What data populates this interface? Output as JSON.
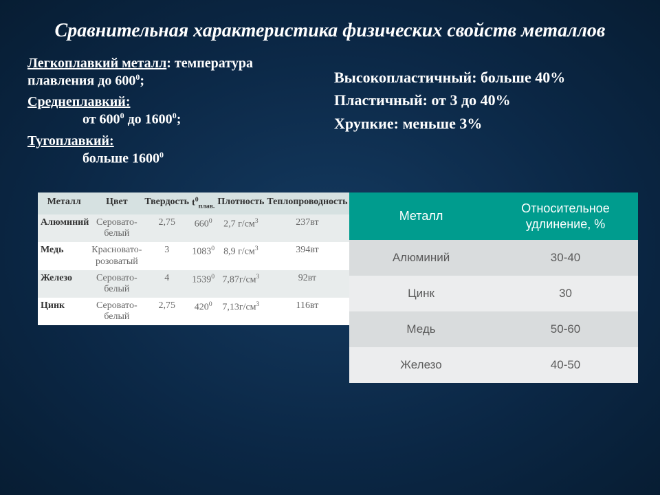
{
  "title": "Сравнительная характеристика физических свойств металлов",
  "left": {
    "l1a": "Легкоплавкий металл",
    "l1b": ": температура плавления до 600",
    "l1c": ";",
    "l2a": "Среднеплавкий:",
    "l2b": "от 600",
    "l2c": " до 1600",
    "l2d": ";",
    "l3a": "Тугоплавкий:",
    "l3b": "больше  1600"
  },
  "right": {
    "r1": "Высокопластичный: больше 40%",
    "r2": "Пластичный: от 3 до 40%",
    "r3": "Хрупкие: меньше 3%"
  },
  "table1": {
    "headers": [
      "Металл",
      "Цвет",
      "Твердость",
      "t⁰плав.",
      "Плотность",
      "Теплопроводность"
    ],
    "rows": [
      {
        "metal": "Алюминий",
        "color": "Серовато-белый",
        "hard": "2,75",
        "tmelt": "660",
        "dens": "2,7 г/см",
        "cond": "237вт"
      },
      {
        "metal": "Медь",
        "color": "Красновато-розоватый",
        "hard": "3",
        "tmelt": "1083",
        "dens": "8,9 г/см",
        "cond": "394вт"
      },
      {
        "metal": "Железо",
        "color": "Серовато-белый",
        "hard": "4",
        "tmelt": "1539",
        "dens": "7,87г/см",
        "cond": "92вт"
      },
      {
        "metal": "Цинк",
        "color": "Серовато-белый",
        "hard": "2,75",
        "tmelt": "420",
        "dens": "7,13г/см",
        "cond": "116вт"
      }
    ]
  },
  "table2": {
    "h1": "Металл",
    "h2": "Относительное удлинение, %",
    "rows": [
      {
        "m": "Алюминий",
        "v": "30-40"
      },
      {
        "m": "Цинк",
        "v": "30"
      },
      {
        "m": "Медь",
        "v": "50-60"
      },
      {
        "m": "Железо",
        "v": "40-50"
      }
    ]
  },
  "style": {
    "bg_center": "#143a60",
    "bg_outer": "#071d33",
    "t2_header_bg": "#009c8e",
    "t2_row_a": "#d9dcdd",
    "t2_row_b": "#ecedee",
    "t1_header_bg": "#d6e1e1",
    "t1_row_odd": "#e8ecec",
    "t1_row_even": "#ffffff"
  }
}
